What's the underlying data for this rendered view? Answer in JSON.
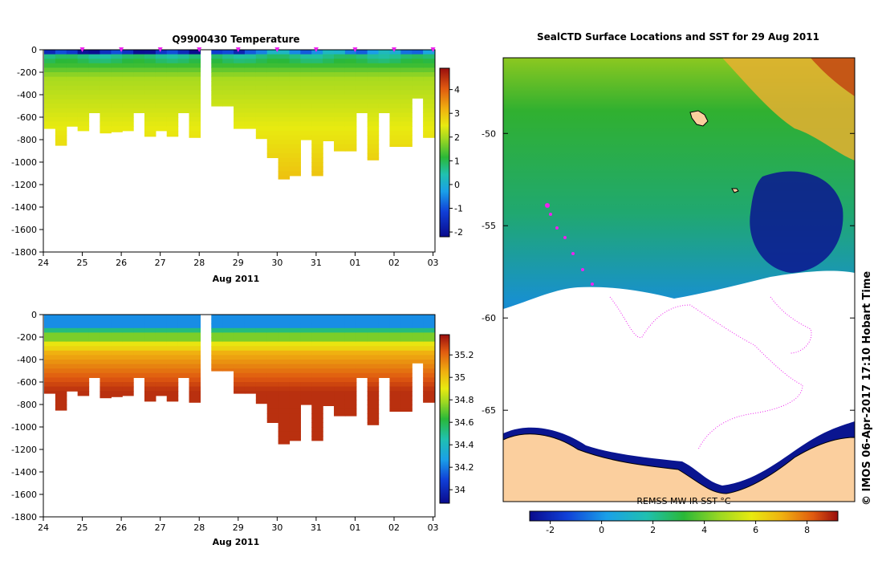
{
  "chart_data": [
    {
      "type": "heatmap",
      "title": "Q9900430  Temperature",
      "xlabel": "Aug 2011",
      "x_tick_labels": [
        "24",
        "25",
        "26",
        "27",
        "28",
        "29",
        "30",
        "31",
        "01",
        "02",
        "03"
      ],
      "y_tick_labels": [
        "0",
        "-200",
        "-400",
        "-600",
        "-800",
        "-1000",
        "-1200",
        "-1400",
        "-1600",
        "-1800"
      ],
      "y_ticks": [
        0,
        -200,
        -400,
        -600,
        -800,
        -1000,
        -1200,
        -1400,
        -1600,
        -1800
      ],
      "ylim": [
        -1800,
        0
      ],
      "xlim_days": [
        24,
        34.05
      ],
      "colorbar_ticks": [
        -2,
        -1,
        0,
        1,
        2,
        3,
        4
      ],
      "colorbar_tick_labels": [
        "-2",
        "-1",
        "0",
        "1",
        "2",
        "3",
        "4"
      ],
      "colorbar_range": [
        -2.2,
        4.9
      ],
      "profile_depths_m": [
        700,
        850,
        680,
        720,
        560,
        740,
        730,
        720,
        560,
        770,
        720,
        770,
        560,
        780,
        0,
        500,
        500,
        700,
        700,
        790,
        960,
        1150,
        1120,
        800,
        1120,
        810,
        900,
        900,
        560,
        980,
        560,
        860,
        860,
        430,
        780
      ],
      "profile_gap_index": 14,
      "surface_markers": [
        "25",
        "26",
        "27",
        "28",
        "29",
        "30",
        "31",
        "01",
        "02",
        "03"
      ]
    },
    {
      "type": "heatmap",
      "title": "",
      "xlabel": "Aug 2011",
      "x_tick_labels": [
        "24",
        "25",
        "26",
        "27",
        "28",
        "29",
        "30",
        "31",
        "01",
        "02",
        "03"
      ],
      "y_tick_labels": [
        "0",
        "-200",
        "-400",
        "-600",
        "-800",
        "-1000",
        "-1200",
        "-1400",
        "-1600",
        "-1800"
      ],
      "y_ticks": [
        0,
        -200,
        -400,
        -600,
        -800,
        -1000,
        -1200,
        -1400,
        -1600,
        -1800
      ],
      "ylim": [
        -1800,
        0
      ],
      "xlim_days": [
        24,
        34.05
      ],
      "colorbar_ticks": [
        34,
        34.2,
        34.4,
        34.6,
        34.8,
        35,
        35.2
      ],
      "colorbar_tick_labels": [
        "34",
        "34.2",
        "34.4",
        "34.6",
        "34.8",
        "35",
        "35.2"
      ],
      "colorbar_range": [
        33.88,
        35.38
      ],
      "profile_depths_m": [
        700,
        850,
        680,
        720,
        560,
        740,
        730,
        720,
        560,
        770,
        720,
        770,
        560,
        780,
        0,
        500,
        500,
        700,
        700,
        790,
        960,
        1150,
        1120,
        800,
        1120,
        810,
        900,
        900,
        560,
        980,
        560,
        860,
        860,
        430,
        780
      ],
      "profile_gap_index": 14
    },
    {
      "type": "heatmap",
      "title": "SealCTD Surface Locations and SST for 29 Aug 2011",
      "y_tick_labels": [
        "-50",
        "-55",
        "-60",
        "-65"
      ],
      "y_ticks": [
        -50,
        -55,
        -60,
        -65
      ],
      "colorbar_label": "REMSS MW-IR SST °C",
      "colorbar_ticks": [
        -2,
        0,
        2,
        4,
        6,
        8
      ],
      "colorbar_tick_labels": [
        "-2",
        "0",
        "2",
        "4",
        "6",
        "8"
      ],
      "colorbar_range": [
        -2.8,
        9.2
      ],
      "side_label": "© IMOS 06-Apr-2017 17:10 Hobart Time"
    }
  ]
}
